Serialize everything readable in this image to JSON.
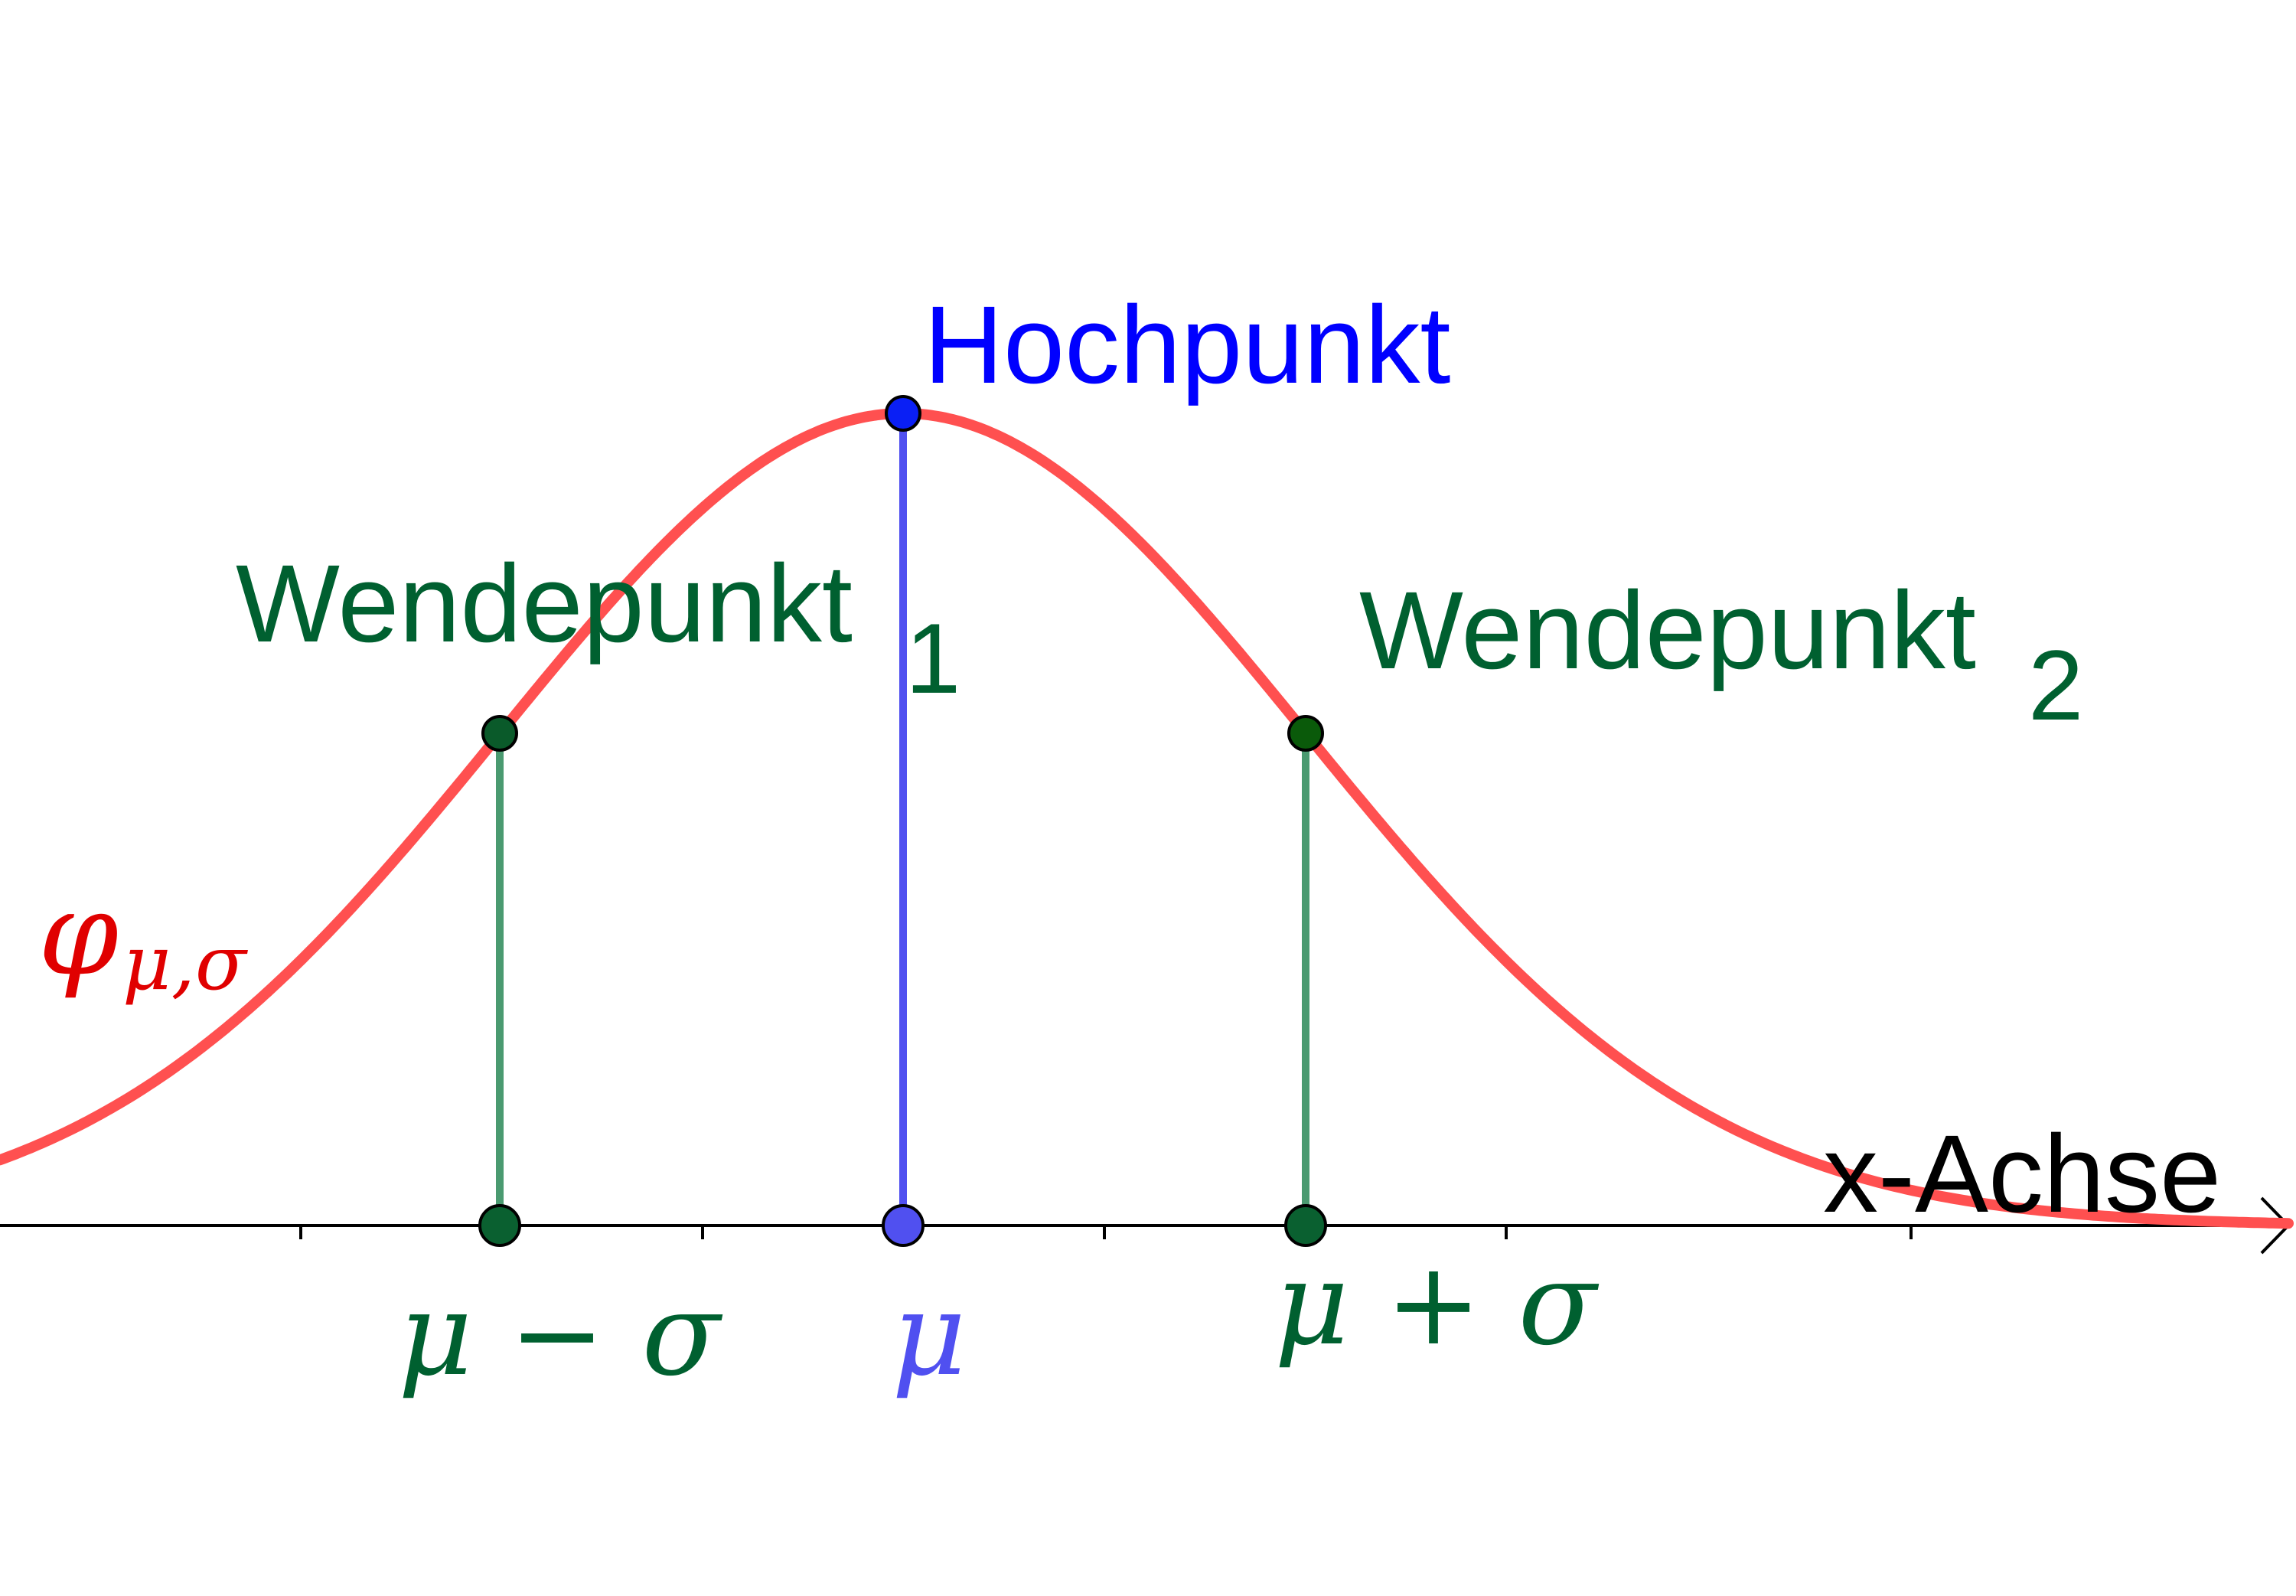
{
  "labels": {
    "hochpunkt": "Hochpunkt",
    "wendepunkt1": {
      "main": "Wendepunkt",
      "sub": "1"
    },
    "wendepunkt2": {
      "main": "Wendepunkt",
      "sub": "2"
    },
    "x_axis": "x-Achse",
    "function": {
      "main": "φ",
      "sub": "μ,σ"
    },
    "mu_minus_sigma": "μ − σ",
    "mu": "μ",
    "mu_plus_sigma": "μ + σ"
  },
  "colors": {
    "curve": "#ff5050",
    "function_label": "#e00000",
    "hochpunkt": "#0000ff",
    "mu": "#5050f0",
    "wendepunkt": "#006030",
    "wendepunkt_line": "#4a9a70",
    "axis": "#000000"
  }
}
